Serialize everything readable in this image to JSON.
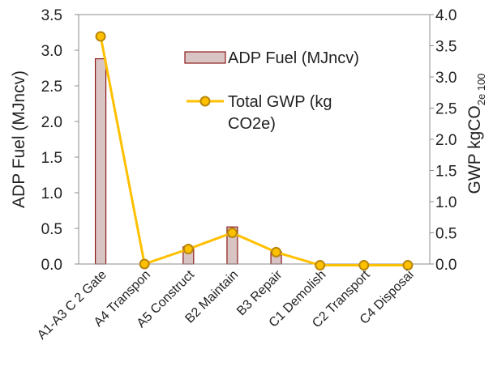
{
  "chart_data": {
    "type": "bar",
    "categories": [
      "A1-A3 C 2 Gate",
      "A4 Transpon",
      "A5 Construct",
      "B2 Maintain",
      "B3 Repair",
      "C1 Demolish",
      "C2 Transport",
      "C4 Disposai"
    ],
    "series": [
      {
        "name": "ADP Fuel (MJncv)",
        "type": "bar",
        "axis": "left",
        "color": "#d9c4c4",
        "stroke": "#8b1a1a",
        "values": [
          2.88,
          0.0,
          0.24,
          0.52,
          0.17,
          0.0,
          0.0,
          0.0
        ]
      },
      {
        "name": "Total GWP (kg CO2e)",
        "type": "line",
        "axis": "right",
        "color": "#ffc000",
        "marker_fill": "#ffc000",
        "marker_stroke": "#b8860b",
        "values": [
          3.65,
          0.0,
          0.24,
          0.5,
          0.19,
          -0.02,
          -0.02,
          -0.02
        ]
      }
    ],
    "ylabel": "ADP Fuel (MJncv)",
    "ylabel_right_main": "GWP kgCO",
    "ylabel_right_sub": "2e 100",
    "ylim": [
      0,
      3.5
    ],
    "ylim_right": [
      0,
      4.0
    ],
    "yticks": [
      "0.0",
      "0.5",
      "1.0",
      "1.5",
      "2.0",
      "2.5",
      "3.0",
      "3.5"
    ],
    "yticks_right": [
      "0.0",
      "0.5",
      "1.0",
      "1.5",
      "2.0",
      "2.5",
      "3.0",
      "3.5",
      "4.0"
    ],
    "legend_entries": [
      "ADP Fuel (MJncv)",
      "Total GWP (kg",
      "CO2e)"
    ],
    "legend_position": "top-right",
    "grid": false
  }
}
